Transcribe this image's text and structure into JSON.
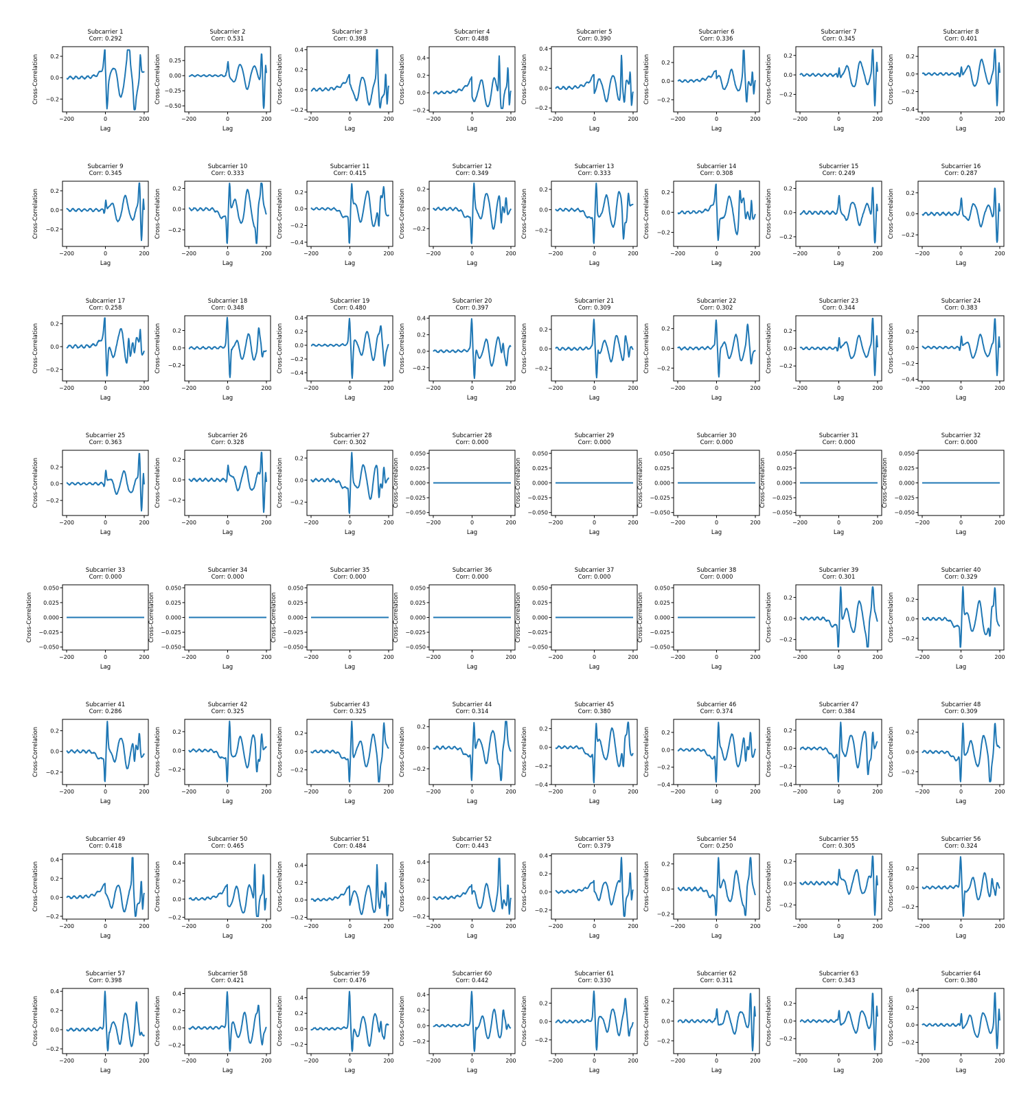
{
  "colors": {
    "line": "#1f77b4",
    "axes": "#000000",
    "background": "#ffffff"
  },
  "chart_data": {
    "type": "line",
    "layout": {
      "rows": 8,
      "cols": 8
    },
    "shared": {
      "xlabel": "Lag",
      "ylabel": "Cross-Correlation",
      "xlim": [
        -200,
        200
      ],
      "xticks": [
        -200,
        0,
        200
      ],
      "grid": false,
      "legend": "none"
    },
    "panels": [
      {
        "title": "Subcarrier 1",
        "corr": "Corr: 0.292",
        "ylim": [
          -0.32,
          0.29
        ],
        "yticks": [
          -0.2,
          0,
          0.2
        ],
        "peak": 0.26,
        "trough": -0.3,
        "profile": 1
      },
      {
        "title": "Subcarrier 2",
        "corr": "Corr: 0.531",
        "ylim": [
          -0.6,
          0.48
        ],
        "yticks": [
          -0.5,
          -0.25,
          0,
          0.25
        ],
        "peak": 0.44,
        "trough": -0.54,
        "profile": 4
      },
      {
        "title": "Subcarrier 3",
        "corr": "Corr: 0.398",
        "ylim": [
          -0.22,
          0.43
        ],
        "yticks": [
          -0.2,
          0,
          0.2,
          0.4
        ],
        "peak": 0.4,
        "trough": -0.18,
        "profile": 0
      },
      {
        "title": "Subcarrier 4",
        "corr": "Corr: 0.488",
        "ylim": [
          -0.22,
          0.53
        ],
        "yticks": [
          -0.2,
          0,
          0.2,
          0.4
        ],
        "peak": 0.49,
        "trough": -0.18,
        "profile": 0
      },
      {
        "title": "Subcarrier 5",
        "corr": "Corr: 0.390",
        "ylim": [
          -0.24,
          0.42
        ],
        "yticks": [
          -0.2,
          0,
          0.2,
          0.4
        ],
        "peak": 0.39,
        "trough": -0.2,
        "profile": 0
      },
      {
        "title": "Subcarrier 6",
        "corr": "Corr: 0.336",
        "ylim": [
          -0.33,
          0.37
        ],
        "yticks": [
          -0.2,
          0,
          0.2
        ],
        "peak": 0.33,
        "trough": -0.3,
        "profile": 0
      },
      {
        "title": "Subcarrier 7",
        "corr": "Corr: 0.345",
        "ylim": [
          -0.38,
          0.29
        ],
        "yticks": [
          -0.2,
          0,
          0.2
        ],
        "peak": 0.26,
        "trough": -0.35,
        "profile": 4
      },
      {
        "title": "Subcarrier 8",
        "corr": "Corr: 0.401",
        "ylim": [
          -0.43,
          0.31
        ],
        "yticks": [
          -0.4,
          -0.2,
          0,
          0.2
        ],
        "peak": 0.28,
        "trough": -0.4,
        "profile": 4
      },
      {
        "title": "Subcarrier 9",
        "corr": "Corr: 0.345",
        "ylim": [
          -0.38,
          0.3
        ],
        "yticks": [
          -0.2,
          0,
          0.2
        ],
        "peak": 0.28,
        "trough": -0.35,
        "profile": 4
      },
      {
        "title": "Subcarrier 10",
        "corr": "Corr: 0.333",
        "ylim": [
          -0.36,
          0.27
        ],
        "yticks": [
          -0.2,
          0,
          0.2
        ],
        "peak": 0.25,
        "trough": -0.33,
        "profile": 2
      },
      {
        "title": "Subcarrier 11",
        "corr": "Corr: 0.415",
        "ylim": [
          -0.45,
          0.33
        ],
        "yticks": [
          -0.4,
          -0.2,
          0,
          0.2
        ],
        "peak": 0.3,
        "trough": -0.41,
        "profile": 2
      },
      {
        "title": "Subcarrier 12",
        "corr": "Corr: 0.349",
        "ylim": [
          -0.38,
          0.28
        ],
        "yticks": [
          -0.2,
          0,
          0.2
        ],
        "peak": 0.26,
        "trough": -0.35,
        "profile": 2
      },
      {
        "title": "Subcarrier 13",
        "corr": "Corr: 0.333",
        "ylim": [
          -0.36,
          0.28
        ],
        "yticks": [
          -0.2,
          0,
          0.2
        ],
        "peak": 0.26,
        "trough": -0.33,
        "profile": 2
      },
      {
        "title": "Subcarrier 14",
        "corr": "Corr: 0.308",
        "ylim": [
          -0.34,
          0.31
        ],
        "yticks": [
          -0.2,
          0,
          0.2
        ],
        "peak": 0.28,
        "trough": -0.3,
        "profile": 1
      },
      {
        "title": "Subcarrier 15",
        "corr": "Corr: 0.249",
        "ylim": [
          -0.28,
          0.26
        ],
        "yticks": [
          -0.2,
          0,
          0.2
        ],
        "peak": 0.24,
        "trough": -0.25,
        "profile": 4
      },
      {
        "title": "Subcarrier 16",
        "corr": "Corr: 0.287",
        "ylim": [
          -0.31,
          0.31
        ],
        "yticks": [
          -0.2,
          0,
          0.2
        ],
        "peak": 0.28,
        "trough": -0.27,
        "profile": 4
      },
      {
        "title": "Subcarrier 17",
        "corr": "Corr: 0.258",
        "ylim": [
          -0.3,
          0.27
        ],
        "yticks": [
          -0.2,
          0,
          0.2
        ],
        "peak": 0.25,
        "trough": -0.26,
        "profile": 1
      },
      {
        "title": "Subcarrier 18",
        "corr": "Corr: 0.348",
        "ylim": [
          -0.38,
          0.37
        ],
        "yticks": [
          -0.2,
          0,
          0.2
        ],
        "peak": 0.35,
        "trough": -0.34,
        "profile": 3
      },
      {
        "title": "Subcarrier 19",
        "corr": "Corr: 0.480",
        "ylim": [
          -0.52,
          0.43
        ],
        "yticks": [
          -0.4,
          -0.2,
          0,
          0.2,
          0.4
        ],
        "peak": 0.39,
        "trough": -0.48,
        "profile": 3
      },
      {
        "title": "Subcarrier 20",
        "corr": "Corr: 0.397",
        "ylim": [
          -0.36,
          0.43
        ],
        "yticks": [
          -0.2,
          0,
          0.2,
          0.4
        ],
        "peak": 0.4,
        "trough": -0.33,
        "profile": 3
      },
      {
        "title": "Subcarrier 21",
        "corr": "Corr: 0.309",
        "ylim": [
          -0.33,
          0.34
        ],
        "yticks": [
          -0.2,
          0,
          0.2
        ],
        "peak": 0.31,
        "trough": -0.3,
        "profile": 3
      },
      {
        "title": "Subcarrier 22",
        "corr": "Corr: 0.302",
        "ylim": [
          -0.33,
          0.33
        ],
        "yticks": [
          -0.2,
          0,
          0.2
        ],
        "peak": 0.3,
        "trough": -0.3,
        "profile": 3
      },
      {
        "title": "Subcarrier 23",
        "corr": "Corr: 0.344",
        "ylim": [
          -0.37,
          0.37
        ],
        "yticks": [
          -0.2,
          0,
          0.2
        ],
        "peak": 0.34,
        "trough": -0.34,
        "profile": 4
      },
      {
        "title": "Subcarrier 24",
        "corr": "Corr: 0.383",
        "ylim": [
          -0.42,
          0.4
        ],
        "yticks": [
          -0.4,
          -0.2,
          0,
          0.2
        ],
        "peak": 0.36,
        "trough": -0.38,
        "profile": 4
      },
      {
        "title": "Subcarrier 25",
        "corr": "Corr: 0.363",
        "ylim": [
          -0.38,
          0.4
        ],
        "yticks": [
          -0.2,
          0,
          0.2
        ],
        "peak": 0.36,
        "trough": -0.34,
        "profile": 4
      },
      {
        "title": "Subcarrier 26",
        "corr": "Corr: 0.328",
        "ylim": [
          -0.35,
          0.29
        ],
        "yticks": [
          -0.2,
          0,
          0.2
        ],
        "peak": 0.27,
        "trough": -0.32,
        "profile": 4
      },
      {
        "title": "Subcarrier 27",
        "corr": "Corr: 0.302",
        "ylim": [
          -0.32,
          0.27
        ],
        "yticks": [
          -0.2,
          0,
          0.2
        ],
        "peak": 0.25,
        "trough": -0.3,
        "profile": 2
      },
      {
        "title": "Subcarrier 28",
        "corr": "Corr: 0.000",
        "ylim": [
          -0.055,
          0.055
        ],
        "yticks": [
          -0.05,
          -0.025,
          0,
          0.025,
          0.05
        ],
        "flat": true
      },
      {
        "title": "Subcarrier 29",
        "corr": "Corr: 0.000",
        "ylim": [
          -0.055,
          0.055
        ],
        "yticks": [
          -0.05,
          -0.025,
          0,
          0.025,
          0.05
        ],
        "flat": true
      },
      {
        "title": "Subcarrier 30",
        "corr": "Corr: 0.000",
        "ylim": [
          -0.055,
          0.055
        ],
        "yticks": [
          -0.05,
          -0.025,
          0,
          0.025,
          0.05
        ],
        "flat": true
      },
      {
        "title": "Subcarrier 31",
        "corr": "Corr: 0.000",
        "ylim": [
          -0.055,
          0.055
        ],
        "yticks": [
          -0.05,
          -0.025,
          0,
          0.025,
          0.05
        ],
        "flat": true
      },
      {
        "title": "Subcarrier 32",
        "corr": "Corr: 0.000",
        "ylim": [
          -0.055,
          0.055
        ],
        "yticks": [
          -0.05,
          -0.025,
          0,
          0.025,
          0.05
        ],
        "flat": true
      },
      {
        "title": "Subcarrier 33",
        "corr": "Corr: 0.000",
        "ylim": [
          -0.055,
          0.055
        ],
        "yticks": [
          -0.05,
          -0.025,
          0,
          0.025,
          0.05
        ],
        "flat": true
      },
      {
        "title": "Subcarrier 34",
        "corr": "Corr: 0.000",
        "ylim": [
          -0.055,
          0.055
        ],
        "yticks": [
          -0.05,
          -0.025,
          0,
          0.025,
          0.05
        ],
        "flat": true
      },
      {
        "title": "Subcarrier 35",
        "corr": "Corr: 0.000",
        "ylim": [
          -0.055,
          0.055
        ],
        "yticks": [
          -0.05,
          -0.025,
          0,
          0.025,
          0.05
        ],
        "flat": true
      },
      {
        "title": "Subcarrier 36",
        "corr": "Corr: 0.000",
        "ylim": [
          -0.055,
          0.055
        ],
        "yticks": [
          -0.05,
          -0.025,
          0,
          0.025,
          0.05
        ],
        "flat": true
      },
      {
        "title": "Subcarrier 37",
        "corr": "Corr: 0.000",
        "ylim": [
          -0.055,
          0.055
        ],
        "yticks": [
          -0.05,
          -0.025,
          0,
          0.025,
          0.05
        ],
        "flat": true
      },
      {
        "title": "Subcarrier 38",
        "corr": "Corr: 0.000",
        "ylim": [
          -0.055,
          0.055
        ],
        "yticks": [
          -0.05,
          -0.025,
          0,
          0.025,
          0.05
        ],
        "flat": true
      },
      {
        "title": "Subcarrier 39",
        "corr": "Corr: 0.301",
        "ylim": [
          -0.3,
          0.32
        ],
        "yticks": [
          -0.2,
          0,
          0.2
        ],
        "peak": 0.3,
        "trough": -0.27,
        "profile": 2
      },
      {
        "title": "Subcarrier 40",
        "corr": "Corr: 0.329",
        "ylim": [
          -0.32,
          0.35
        ],
        "yticks": [
          -0.2,
          0,
          0.2
        ],
        "peak": 0.33,
        "trough": -0.29,
        "profile": 2
      },
      {
        "title": "Subcarrier 41",
        "corr": "Corr: 0.286",
        "ylim": [
          -0.32,
          0.31
        ],
        "yticks": [
          -0.2,
          0,
          0.2
        ],
        "peak": 0.29,
        "trough": -0.29,
        "profile": 2
      },
      {
        "title": "Subcarrier 42",
        "corr": "Corr: 0.325",
        "ylim": [
          -0.36,
          0.33
        ],
        "yticks": [
          -0.2,
          0,
          0.2
        ],
        "peak": 0.31,
        "trough": -0.33,
        "profile": 2
      },
      {
        "title": "Subcarrier 43",
        "corr": "Corr: 0.325",
        "ylim": [
          -0.36,
          0.35
        ],
        "yticks": [
          -0.2,
          0,
          0.2
        ],
        "peak": 0.33,
        "trough": -0.33,
        "profile": 2
      },
      {
        "title": "Subcarrier 44",
        "corr": "Corr: 0.314",
        "ylim": [
          -0.35,
          0.27
        ],
        "yticks": [
          -0.2,
          0,
          0.2
        ],
        "peak": 0.25,
        "trough": -0.31,
        "profile": 2
      },
      {
        "title": "Subcarrier 45",
        "corr": "Corr: 0.380",
        "ylim": [
          -0.4,
          0.3
        ],
        "yticks": [
          -0.4,
          -0.2,
          0,
          0.2
        ],
        "peak": 0.27,
        "trough": -0.38,
        "profile": 2
      },
      {
        "title": "Subcarrier 46",
        "corr": "Corr: 0.374",
        "ylim": [
          -0.4,
          0.35
        ],
        "yticks": [
          -0.4,
          -0.2,
          0,
          0.2
        ],
        "peak": 0.33,
        "trough": -0.37,
        "profile": 2
      },
      {
        "title": "Subcarrier 47",
        "corr": "Corr: 0.384",
        "ylim": [
          -0.4,
          0.32
        ],
        "yticks": [
          -0.4,
          -0.2,
          0,
          0.2
        ],
        "peak": 0.3,
        "trough": -0.37,
        "profile": 2
      },
      {
        "title": "Subcarrier 48",
        "corr": "Corr: 0.309",
        "ylim": [
          -0.33,
          0.33
        ],
        "yticks": [
          -0.2,
          0,
          0.2
        ],
        "peak": 0.3,
        "trough": -0.3,
        "profile": 2
      },
      {
        "title": "Subcarrier 49",
        "corr": "Corr: 0.418",
        "ylim": [
          -0.23,
          0.46
        ],
        "yticks": [
          -0.2,
          0,
          0.2,
          0.4
        ],
        "peak": 0.42,
        "trough": -0.2,
        "profile": 0
      },
      {
        "title": "Subcarrier 50",
        "corr": "Corr: 0.465",
        "ylim": [
          -0.22,
          0.5
        ],
        "yticks": [
          -0.2,
          0,
          0.2,
          0.4
        ],
        "peak": 0.46,
        "trough": -0.19,
        "profile": 0
      },
      {
        "title": "Subcarrier 51",
        "corr": "Corr: 0.484",
        "ylim": [
          -0.22,
          0.53
        ],
        "yticks": [
          -0.2,
          0,
          0.2,
          0.4
        ],
        "peak": 0.48,
        "trough": -0.18,
        "profile": 0
      },
      {
        "title": "Subcarrier 52",
        "corr": "Corr: 0.443",
        "ylim": [
          -0.23,
          0.49
        ],
        "yticks": [
          -0.2,
          0,
          0.2,
          0.4
        ],
        "peak": 0.44,
        "trough": -0.19,
        "profile": 0
      },
      {
        "title": "Subcarrier 53",
        "corr": "Corr: 0.379",
        "ylim": [
          -0.3,
          0.42
        ],
        "yticks": [
          -0.2,
          0,
          0.2,
          0.4
        ],
        "peak": 0.38,
        "trough": -0.27,
        "profile": 0
      },
      {
        "title": "Subcarrier 54",
        "corr": "Corr: 0.250",
        "ylim": [
          -0.24,
          0.28
        ],
        "yticks": [
          -0.2,
          0,
          0.2
        ],
        "peak": 0.25,
        "trough": -0.21,
        "profile": 2
      },
      {
        "title": "Subcarrier 55",
        "corr": "Corr: 0.305",
        "ylim": [
          -0.33,
          0.27
        ],
        "yticks": [
          -0.2,
          0,
          0.2
        ],
        "peak": 0.25,
        "trough": -0.3,
        "profile": 4
      },
      {
        "title": "Subcarrier 56",
        "corr": "Corr: 0.324",
        "ylim": [
          -0.33,
          0.35
        ],
        "yticks": [
          -0.2,
          0,
          0.2
        ],
        "peak": 0.32,
        "trough": -0.3,
        "profile": 3
      },
      {
        "title": "Subcarrier 57",
        "corr": "Corr: 0.398",
        "ylim": [
          -0.25,
          0.43
        ],
        "yticks": [
          -0.2,
          0,
          0.2,
          0.4
        ],
        "peak": 0.4,
        "trough": -0.22,
        "profile": 3
      },
      {
        "title": "Subcarrier 58",
        "corr": "Corr: 0.421",
        "ylim": [
          -0.3,
          0.46
        ],
        "yticks": [
          -0.2,
          0,
          0.2,
          0.4
        ],
        "peak": 0.42,
        "trough": -0.27,
        "profile": 3
      },
      {
        "title": "Subcarrier 59",
        "corr": "Corr: 0.476",
        "ylim": [
          -0.32,
          0.52
        ],
        "yticks": [
          -0.2,
          0,
          0.2,
          0.4
        ],
        "peak": 0.48,
        "trough": -0.29,
        "profile": 3
      },
      {
        "title": "Subcarrier 60",
        "corr": "Corr: 0.442",
        "ylim": [
          -0.36,
          0.48
        ],
        "yticks": [
          -0.2,
          0,
          0.2,
          0.4
        ],
        "peak": 0.44,
        "trough": -0.33,
        "profile": 3
      },
      {
        "title": "Subcarrier 61",
        "corr": "Corr: 0.330",
        "ylim": [
          -0.35,
          0.36
        ],
        "yticks": [
          -0.2,
          0,
          0.2
        ],
        "peak": 0.33,
        "trough": -0.31,
        "profile": 3
      },
      {
        "title": "Subcarrier 62",
        "corr": "Corr: 0.311",
        "ylim": [
          -0.33,
          0.33
        ],
        "yticks": [
          -0.2,
          0,
          0.2
        ],
        "peak": 0.31,
        "trough": -0.3,
        "profile": 4
      },
      {
        "title": "Subcarrier 63",
        "corr": "Corr: 0.343",
        "ylim": [
          -0.37,
          0.37
        ],
        "yticks": [
          -0.2,
          0,
          0.2
        ],
        "peak": 0.34,
        "trough": -0.34,
        "profile": 4
      },
      {
        "title": "Subcarrier 64",
        "corr": "Corr: 0.380",
        "ylim": [
          -0.33,
          0.42
        ],
        "yticks": [
          -0.2,
          0,
          0.2,
          0.4
        ],
        "peak": 0.38,
        "trough": -0.3,
        "profile": 4
      }
    ]
  }
}
